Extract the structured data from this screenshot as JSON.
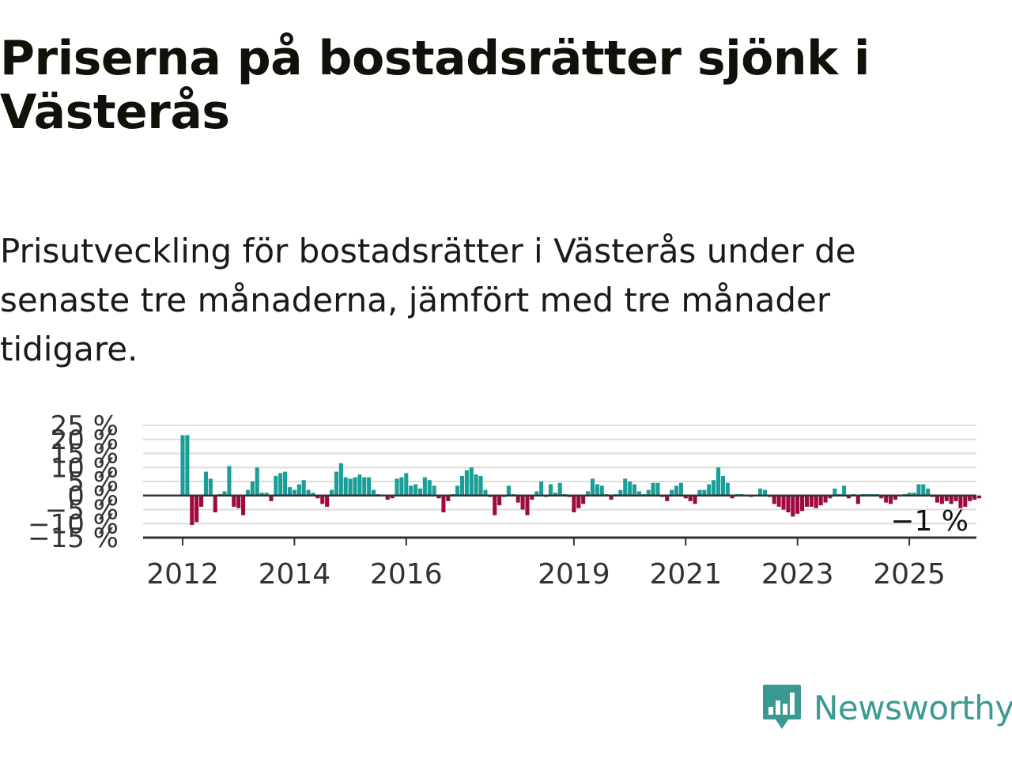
{
  "header": {
    "title": "Priserna på bostadsrätter sjönk i Västerås",
    "subtitle": "Prisutveckling för bostadsrätter i Västerås under de senaste tre månaderna, jämfört med tre månader tidigare."
  },
  "brand": {
    "name": "Newsworthy",
    "icon": "newsworthy-logo-icon"
  },
  "colors": {
    "positive": "#1a9e98",
    "negative": "#a1083f",
    "grid": "#dddddd",
    "axis": "#333333"
  },
  "chart_data": {
    "type": "bar",
    "title": "",
    "xlabel": "",
    "ylabel": "",
    "ylim": [
      -15,
      25
    ],
    "y_ticks": [
      {
        "value": 25,
        "label": "25 %"
      },
      {
        "value": 20,
        "label": "20 %"
      },
      {
        "value": 15,
        "label": "15 %"
      },
      {
        "value": 10,
        "label": "10 %"
      },
      {
        "value": 5,
        "label": "5 %"
      },
      {
        "value": 0,
        "label": "0 %"
      },
      {
        "value": -5,
        "label": "−5 %"
      },
      {
        "value": -10,
        "label": "−10 %"
      },
      {
        "value": -15,
        "label": "−15 %"
      }
    ],
    "x_ticks": [
      {
        "value": 2012,
        "label": "2012"
      },
      {
        "value": 2014,
        "label": "2014"
      },
      {
        "value": 2016,
        "label": "2016"
      },
      {
        "value": 2019,
        "label": "2019"
      },
      {
        "value": 2021,
        "label": "2021"
      },
      {
        "value": 2023,
        "label": "2023"
      },
      {
        "value": 2025,
        "label": "2025"
      }
    ],
    "x_start": "2012-01",
    "x_interval": "month",
    "grid": true,
    "end_label": "−1 %",
    "values": [
      21.5,
      21.5,
      -10.5,
      -9.5,
      -4,
      8.5,
      6,
      -6,
      0.5,
      1.5,
      10.5,
      -4,
      -4.5,
      -7,
      2,
      5,
      10,
      1,
      1,
      -2,
      7,
      8,
      8.5,
      3,
      2,
      4,
      5.5,
      2,
      1,
      -1,
      -3,
      -4,
      2,
      8.5,
      11.5,
      6.5,
      6,
      6.5,
      7.5,
      6.5,
      6.5,
      2,
      0.5,
      0,
      -1.5,
      -1,
      6,
      6.5,
      8,
      3.5,
      4,
      2.5,
      6.5,
      5.5,
      3.5,
      -1,
      -6,
      -2,
      0.5,
      3.5,
      7,
      9,
      10,
      7.5,
      7,
      2,
      -0.5,
      -7,
      -3.5,
      -0.5,
      3.5,
      0.5,
      -2.5,
      -5,
      -7,
      -1.5,
      1.5,
      5,
      -0.5,
      4,
      1,
      4.5,
      0.5,
      -0.5,
      -6,
      -4.5,
      -3,
      1.5,
      6,
      4,
      3.5,
      0.5,
      -1.5,
      0.5,
      2,
      6,
      5,
      4,
      1.5,
      0.5,
      2,
      4.5,
      4.5,
      -0.5,
      -2,
      2,
      3.5,
      4.5,
      -1,
      -2,
      -3,
      2,
      2,
      4,
      5.5,
      10,
      7,
      4.5,
      -1,
      0.5,
      0.5,
      0,
      -0.5,
      0,
      2.5,
      2,
      -0.5,
      -3,
      -4,
      -5,
      -6,
      -7.5,
      -6.5,
      -5.5,
      -4,
      -4,
      -4.5,
      -3.5,
      -2.5,
      -1,
      2.5,
      0.5,
      3.5,
      -1,
      0.5,
      -3,
      0.5,
      0.5,
      0.5,
      0.5,
      -1,
      -2.5,
      -3,
      -1.5,
      0,
      0.5,
      1,
      1,
      4,
      4,
      2.5,
      -0.5,
      -2.5,
      -3,
      -2,
      -3,
      -2,
      -4.5,
      -4,
      -2,
      -1.5,
      -1
    ]
  }
}
